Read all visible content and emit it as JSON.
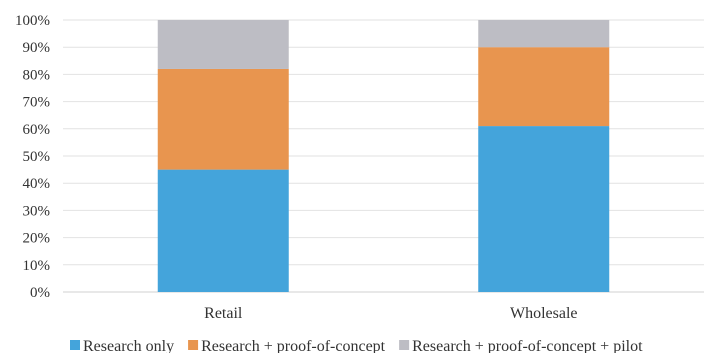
{
  "chart_data": {
    "type": "bar",
    "stacked": true,
    "categories": [
      "Retail",
      "Wholesale"
    ],
    "series": [
      {
        "name": "Research only",
        "values": [
          45,
          61
        ],
        "color": "#44A4DB"
      },
      {
        "name": "Research + proof-of-concept",
        "values": [
          37,
          29
        ],
        "color": "#E8954F"
      },
      {
        "name": "Research + proof-of-concept + pilot",
        "values": [
          18,
          10
        ],
        "color": "#BDBDC4"
      }
    ],
    "title": "",
    "xlabel": "",
    "ylabel": "",
    "ylim": [
      0,
      100
    ],
    "yticks": [
      "0%",
      "10%",
      "20%",
      "30%",
      "40%",
      "50%",
      "60%",
      "70%",
      "80%",
      "90%",
      "100%"
    ],
    "grid": true,
    "legend_position": "bottom"
  }
}
